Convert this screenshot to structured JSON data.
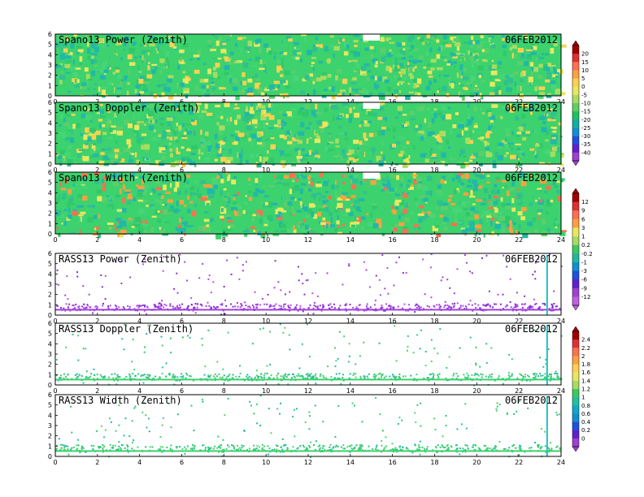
{
  "figure": {
    "date": "06FEB2012"
  },
  "chart_data": [
    {
      "type": "heatmap",
      "title": "Spano13 Power (Zenith)",
      "date": "06FEB2012",
      "xlim": [
        0,
        24
      ],
      "ylim": [
        0,
        6
      ],
      "xticks": [
        "0",
        "2",
        "4",
        "6",
        "8",
        "10",
        "12",
        "14",
        "16",
        "18",
        "20",
        "22",
        "24"
      ],
      "yticks": [
        "0",
        "1",
        "2",
        "3",
        "4",
        "5",
        "6"
      ],
      "dominant_color": "green",
      "colorbar": "power_doppler",
      "sparse": false
    },
    {
      "type": "heatmap",
      "title": "Spano13 Doppler (Zenith)",
      "date": "06FEB2012",
      "xlim": [
        0,
        24
      ],
      "ylim": [
        0,
        6
      ],
      "xticks": [
        "0",
        "2",
        "4",
        "6",
        "8",
        "10",
        "12",
        "14",
        "16",
        "18",
        "20",
        "22",
        "24"
      ],
      "yticks": [
        "0",
        "1",
        "2",
        "3",
        "4",
        "5",
        "6"
      ],
      "dominant_color": "green",
      "colorbar": "power_doppler",
      "sparse": false
    },
    {
      "type": "heatmap",
      "title": "Spano13 Width (Zenith)",
      "date": "06FEB2012",
      "xlim": [
        0,
        24
      ],
      "ylim": [
        0,
        6
      ],
      "xticks": [
        "0",
        "2",
        "4",
        "6",
        "8",
        "10",
        "12",
        "14",
        "16",
        "18",
        "20",
        "22",
        "24"
      ],
      "yticks": [
        "0",
        "1",
        "2",
        "3",
        "4",
        "5",
        "6"
      ],
      "dominant_color": "green",
      "colorbar": "width_rass_power",
      "sparse": false
    },
    {
      "type": "heatmap",
      "title": "RASS13 Power (Zenith)",
      "date": "06FEB2012",
      "xlim": [
        0,
        24
      ],
      "ylim": [
        0,
        6
      ],
      "xticks": [
        "0",
        "2",
        "4",
        "6",
        "8",
        "10",
        "12",
        "14",
        "16",
        "18",
        "20",
        "22",
        "24"
      ],
      "yticks": [
        "0",
        "1",
        "2",
        "3",
        "4",
        "5",
        "6"
      ],
      "dominant_color": "purple",
      "colorbar": "width_rass_power",
      "sparse": true
    },
    {
      "type": "heatmap",
      "title": "RASS13 Doppler (Zenith)",
      "date": "06FEB2012",
      "xlim": [
        0,
        24
      ],
      "ylim": [
        0,
        6
      ],
      "xticks": [
        "0",
        "2",
        "4",
        "6",
        "8",
        "10",
        "12",
        "14",
        "16",
        "18",
        "20",
        "22",
        "24"
      ],
      "yticks": [
        "0",
        "1",
        "2",
        "3",
        "4",
        "5",
        "6"
      ],
      "dominant_color": "green",
      "colorbar": "rass_doppler_width",
      "sparse": true
    },
    {
      "type": "heatmap",
      "title": "RASS13 Width (Zenith)",
      "date": "06FEB2012",
      "xlim": [
        0,
        24
      ],
      "ylim": [
        0,
        6
      ],
      "xticks": [
        "0",
        "2",
        "4",
        "6",
        "8",
        "10",
        "12",
        "14",
        "16",
        "18",
        "20",
        "22",
        "24"
      ],
      "yticks": [
        "0",
        "1",
        "2",
        "3",
        "4",
        "5",
        "6"
      ],
      "dominant_color": "green",
      "colorbar": "rass_doppler_width",
      "sparse": true
    }
  ],
  "colorbars": {
    "power_doppler": {
      "labels": [
        "20",
        "15",
        "10",
        "5",
        "0",
        "-5",
        "-10",
        "-15",
        "-20",
        "-25",
        "-30",
        "-35",
        "-40"
      ],
      "colors": [
        "#a00000",
        "#e03030",
        "#ff7050",
        "#ffa040",
        "#ffd050",
        "#e8e860",
        "#a8dc60",
        "#60d060",
        "#20c060",
        "#10b0a0",
        "#1090d0",
        "#2050e0",
        "#6020d0",
        "#a040d0"
      ]
    },
    "width_rass_power": {
      "labels": [
        "12",
        "9",
        "6",
        "3",
        "1",
        "0.2",
        "-0.2",
        "-1",
        "-3",
        "-6",
        "-9",
        "-12"
      ],
      "colors": [
        "#a00000",
        "#e03030",
        "#ff7050",
        "#ffa040",
        "#e8e860",
        "#a8dc60",
        "#40c860",
        "#20b8a0",
        "#1090d0",
        "#2050e0",
        "#6020d0",
        "#a040d0",
        "#c060e0"
      ]
    },
    "rass_doppler_width": {
      "labels": [
        "2.4",
        "2.2",
        "2",
        "1.8",
        "1.6",
        "1.4",
        "1.2",
        "1",
        "0.8",
        "0.6",
        "0.4",
        "0.2",
        "0"
      ],
      "colors": [
        "#a00000",
        "#e03030",
        "#ff7050",
        "#ffa040",
        "#ffd050",
        "#e8e860",
        "#a8dc60",
        "#40c860",
        "#20c0a0",
        "#10a8c8",
        "#1090d0",
        "#2050e0",
        "#6020d0",
        "#a040d0"
      ]
    }
  },
  "palettes": {
    "green": [
      "#3cd26e",
      "#46d678",
      "#2fc86a",
      "#5ccf6a",
      "#30c090",
      "#22b8a8"
    ],
    "purple": [
      "#a040e0",
      "#8030d0",
      "#b050e8"
    ]
  }
}
